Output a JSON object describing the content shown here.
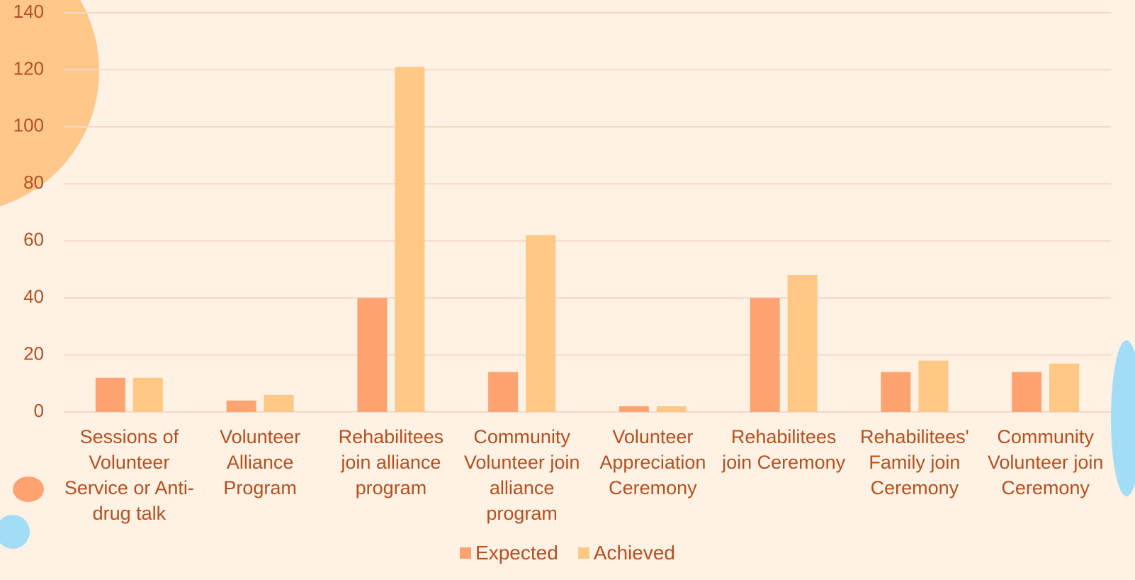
{
  "chart_data": {
    "type": "bar",
    "categories": [
      "Sessions of Volunteer Service or Anti-drug talk",
      "Volunteer Alliance Program",
      "Rehabilitees join alliance program",
      "Community Volunteer join alliance program",
      "Volunteer Appreciation Ceremony",
      "Rehabilitees join Ceremony",
      "Rehabilitees' Family join Ceremony",
      "Community Volunteer join Ceremony"
    ],
    "series": [
      {
        "name": "Expected",
        "color": "#ffa370",
        "values": [
          12,
          4,
          40,
          14,
          2,
          40,
          14,
          14
        ]
      },
      {
        "name": "Achieved",
        "color": "#ffc885",
        "values": [
          12,
          6,
          121,
          62,
          2,
          48,
          18,
          17
        ]
      }
    ],
    "ylim": [
      0,
      140
    ],
    "yticks": [
      0,
      20,
      40,
      60,
      80,
      100,
      120,
      140
    ],
    "grid": true,
    "legend": "bottom"
  }
}
